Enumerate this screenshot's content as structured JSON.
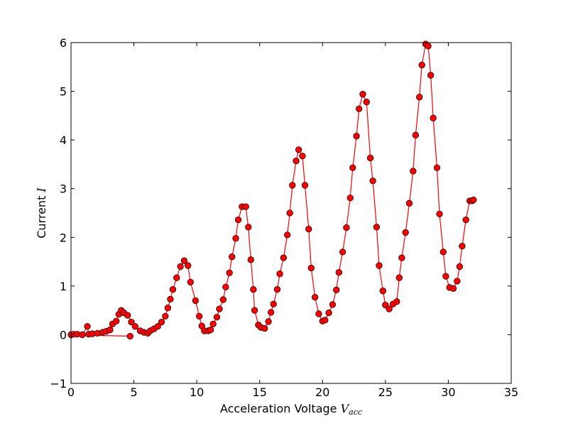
{
  "chart_data": {
    "type": "line",
    "title": "",
    "xlabel": {
      "text": "Acceleration Voltage ",
      "symbol": "V",
      "subscript": "acc"
    },
    "ylabel": {
      "text": "Current ",
      "symbol": "I"
    },
    "xlim": [
      0,
      35
    ],
    "ylim": [
      -1,
      6
    ],
    "xticks": [
      0,
      5,
      10,
      15,
      20,
      25,
      30,
      35
    ],
    "yticks": [
      -1,
      0,
      1,
      2,
      3,
      4,
      5,
      6
    ],
    "xtick_labels": [
      "0",
      "5",
      "10",
      "15",
      "20",
      "25",
      "30",
      "35"
    ],
    "ytick_labels": [
      "−1",
      "0",
      "1",
      "2",
      "3",
      "4",
      "5",
      "6"
    ],
    "grid": false,
    "line_color": "#ff0000",
    "marker_color": "#ff0000",
    "marker_edge": "#000000",
    "series": [
      {
        "x": [
          4.7,
          0.0,
          0.2,
          0.5,
          0.9,
          1.3,
          1.4,
          1.7,
          2.1,
          2.5,
          2.8,
          3.1,
          3.3,
          3.6,
          3.8,
          4.0,
          4.2,
          4.5,
          4.8,
          5.1,
          5.5,
          5.8,
          6.1,
          6.3,
          6.6,
          6.9,
          7.2,
          7.5,
          7.7,
          7.9,
          8.1,
          8.4,
          8.7,
          9.0,
          9.3,
          9.5,
          9.9,
          10.2,
          10.4,
          10.6,
          10.9,
          11.1,
          11.3,
          11.6,
          11.8,
          12.1,
          12.3,
          12.6,
          12.8,
          13.1,
          13.3,
          13.6,
          13.9,
          14.1,
          14.3,
          14.5,
          14.6,
          14.9,
          15.1,
          15.4,
          15.7,
          15.9,
          16.1,
          16.4,
          16.6,
          16.9,
          17.2,
          17.4,
          17.6,
          17.9,
          18.1,
          18.4,
          18.6,
          18.9,
          19.1,
          19.4,
          19.7,
          20.0,
          20.2,
          20.5,
          20.8,
          21.1,
          21.3,
          21.6,
          21.9,
          22.2,
          22.4,
          22.7,
          22.9,
          23.2,
          23.5,
          23.8,
          24.0,
          24.3,
          24.5,
          24.8,
          25.0,
          25.3,
          25.6,
          25.9,
          26.1,
          26.3,
          26.6,
          26.9,
          27.2,
          27.4,
          27.7,
          27.9,
          28.2,
          28.4,
          28.6,
          28.8,
          29.1,
          29.3,
          29.6,
          29.8,
          30.1,
          30.4,
          30.7,
          30.9,
          31.1,
          31.4,
          31.7,
          31.9,
          32.0
        ],
        "y": [
          -0.03,
          0.0,
          0.01,
          0.01,
          0.0,
          0.17,
          0.01,
          0.02,
          0.03,
          0.05,
          0.07,
          0.1,
          0.22,
          0.28,
          0.42,
          0.5,
          0.45,
          0.4,
          0.26,
          0.17,
          0.08,
          0.05,
          0.03,
          0.08,
          0.12,
          0.17,
          0.26,
          0.38,
          0.55,
          0.73,
          0.93,
          1.17,
          1.4,
          1.52,
          1.42,
          1.08,
          0.7,
          0.38,
          0.18,
          0.08,
          0.08,
          0.1,
          0.22,
          0.36,
          0.53,
          0.72,
          0.98,
          1.27,
          1.6,
          1.98,
          2.36,
          2.63,
          2.63,
          2.21,
          1.54,
          0.93,
          0.5,
          0.2,
          0.15,
          0.13,
          0.27,
          0.46,
          0.63,
          0.93,
          1.25,
          1.58,
          2.05,
          2.5,
          3.07,
          3.57,
          3.8,
          3.67,
          3.07,
          2.17,
          1.37,
          0.77,
          0.43,
          0.28,
          0.3,
          0.45,
          0.62,
          0.92,
          1.28,
          1.7,
          2.2,
          2.81,
          3.43,
          4.08,
          4.64,
          4.94,
          4.78,
          3.63,
          3.16,
          2.21,
          1.42,
          0.9,
          0.61,
          0.53,
          0.63,
          0.68,
          1.17,
          1.58,
          2.1,
          2.7,
          3.36,
          4.1,
          4.88,
          5.54,
          5.97,
          5.93,
          5.33,
          4.45,
          3.43,
          2.48,
          1.7,
          1.2,
          0.97,
          0.95,
          1.1,
          1.4,
          1.82,
          2.36,
          2.75,
          2.75,
          2.77
        ]
      }
    ]
  }
}
